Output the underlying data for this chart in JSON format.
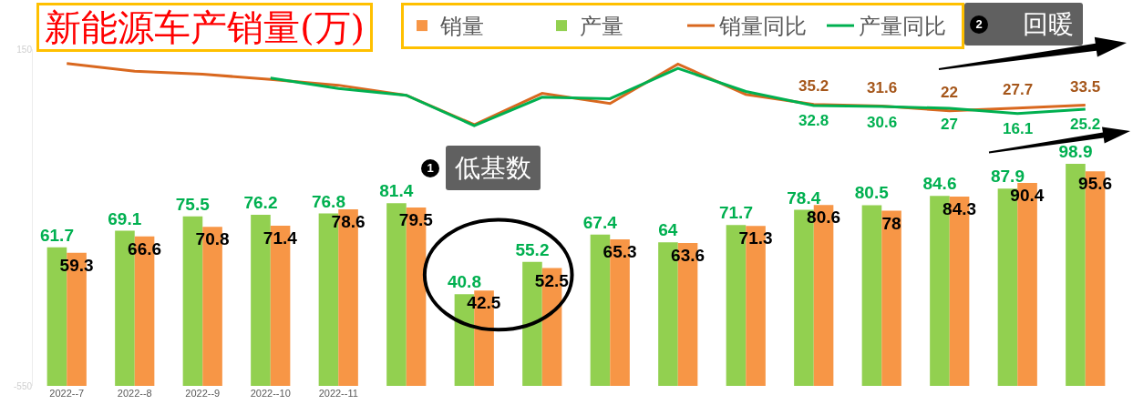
{
  "chart_data": {
    "type": "bar",
    "title": "新能源车产销量(万)",
    "categories": [
      "2022--7",
      "2022--8",
      "2022--9",
      "2022--10",
      "2022--11",
      null,
      null,
      null,
      null,
      null,
      null,
      null,
      null,
      null,
      null,
      null
    ],
    "series": [
      {
        "name": "销量",
        "color": "#f79646",
        "values": [
          59.3,
          66.6,
          70.8,
          71.4,
          78.6,
          79.5,
          42.5,
          52.5,
          65.3,
          63.6,
          71.3,
          80.6,
          78,
          84.3,
          90.4,
          95.6
        ],
        "value_labels": [
          "59.3",
          "66.6",
          "70.8",
          "71.4",
          "78.6",
          "79.5",
          "42.5",
          "52.5",
          "65.3",
          "63.6",
          "71.3",
          "80.6",
          "78",
          "84.3",
          "90.4",
          "95.6"
        ]
      },
      {
        "name": "产量",
        "color": "#92d050",
        "values": [
          61.7,
          69.1,
          75.5,
          76.2,
          76.8,
          81.4,
          40.8,
          55.2,
          67.4,
          64,
          71.7,
          78.4,
          80.5,
          84.6,
          87.9,
          98.9
        ],
        "value_labels": [
          "61.7",
          "69.1",
          "75.5",
          "76.2",
          "76.8",
          "81.4",
          "40.8",
          "55.2",
          "67.4",
          "64",
          "71.7",
          "78.4",
          "80.5",
          "84.6",
          "87.9",
          "98.9"
        ]
      },
      {
        "name": "销量同比",
        "type": "line",
        "axis": "y2",
        "color": "#d9681f",
        "values": [
          120,
          104,
          98,
          87,
          75,
          54,
          -7,
          58,
          37,
          119,
          56,
          35.2,
          31.6,
          22,
          27.7,
          33.5
        ],
        "value_labels": [
          null,
          null,
          null,
          null,
          null,
          null,
          null,
          null,
          null,
          null,
          null,
          "35.2",
          "31.6",
          "22",
          "27.7",
          "33.5"
        ]
      },
      {
        "name": "产量同比",
        "type": "line",
        "axis": "y2",
        "color": "#00b050",
        "values": [
          null,
          null,
          null,
          90,
          68,
          54,
          -9,
          50,
          47,
          110,
          62,
          32.8,
          30.6,
          27,
          16.1,
          25.2
        ],
        "value_labels": [
          null,
          null,
          null,
          null,
          null,
          null,
          null,
          null,
          null,
          null,
          null,
          "32.8",
          "30.6",
          "27",
          "16.1",
          "25.2"
        ]
      }
    ],
    "ylim": [
      0,
      150
    ],
    "y2lim": [
      -550,
      150
    ],
    "y2ticks": [
      -550,
      150
    ],
    "legend": "top",
    "annotations": [
      "1",
      "低基数",
      "2",
      "回暖"
    ]
  }
}
